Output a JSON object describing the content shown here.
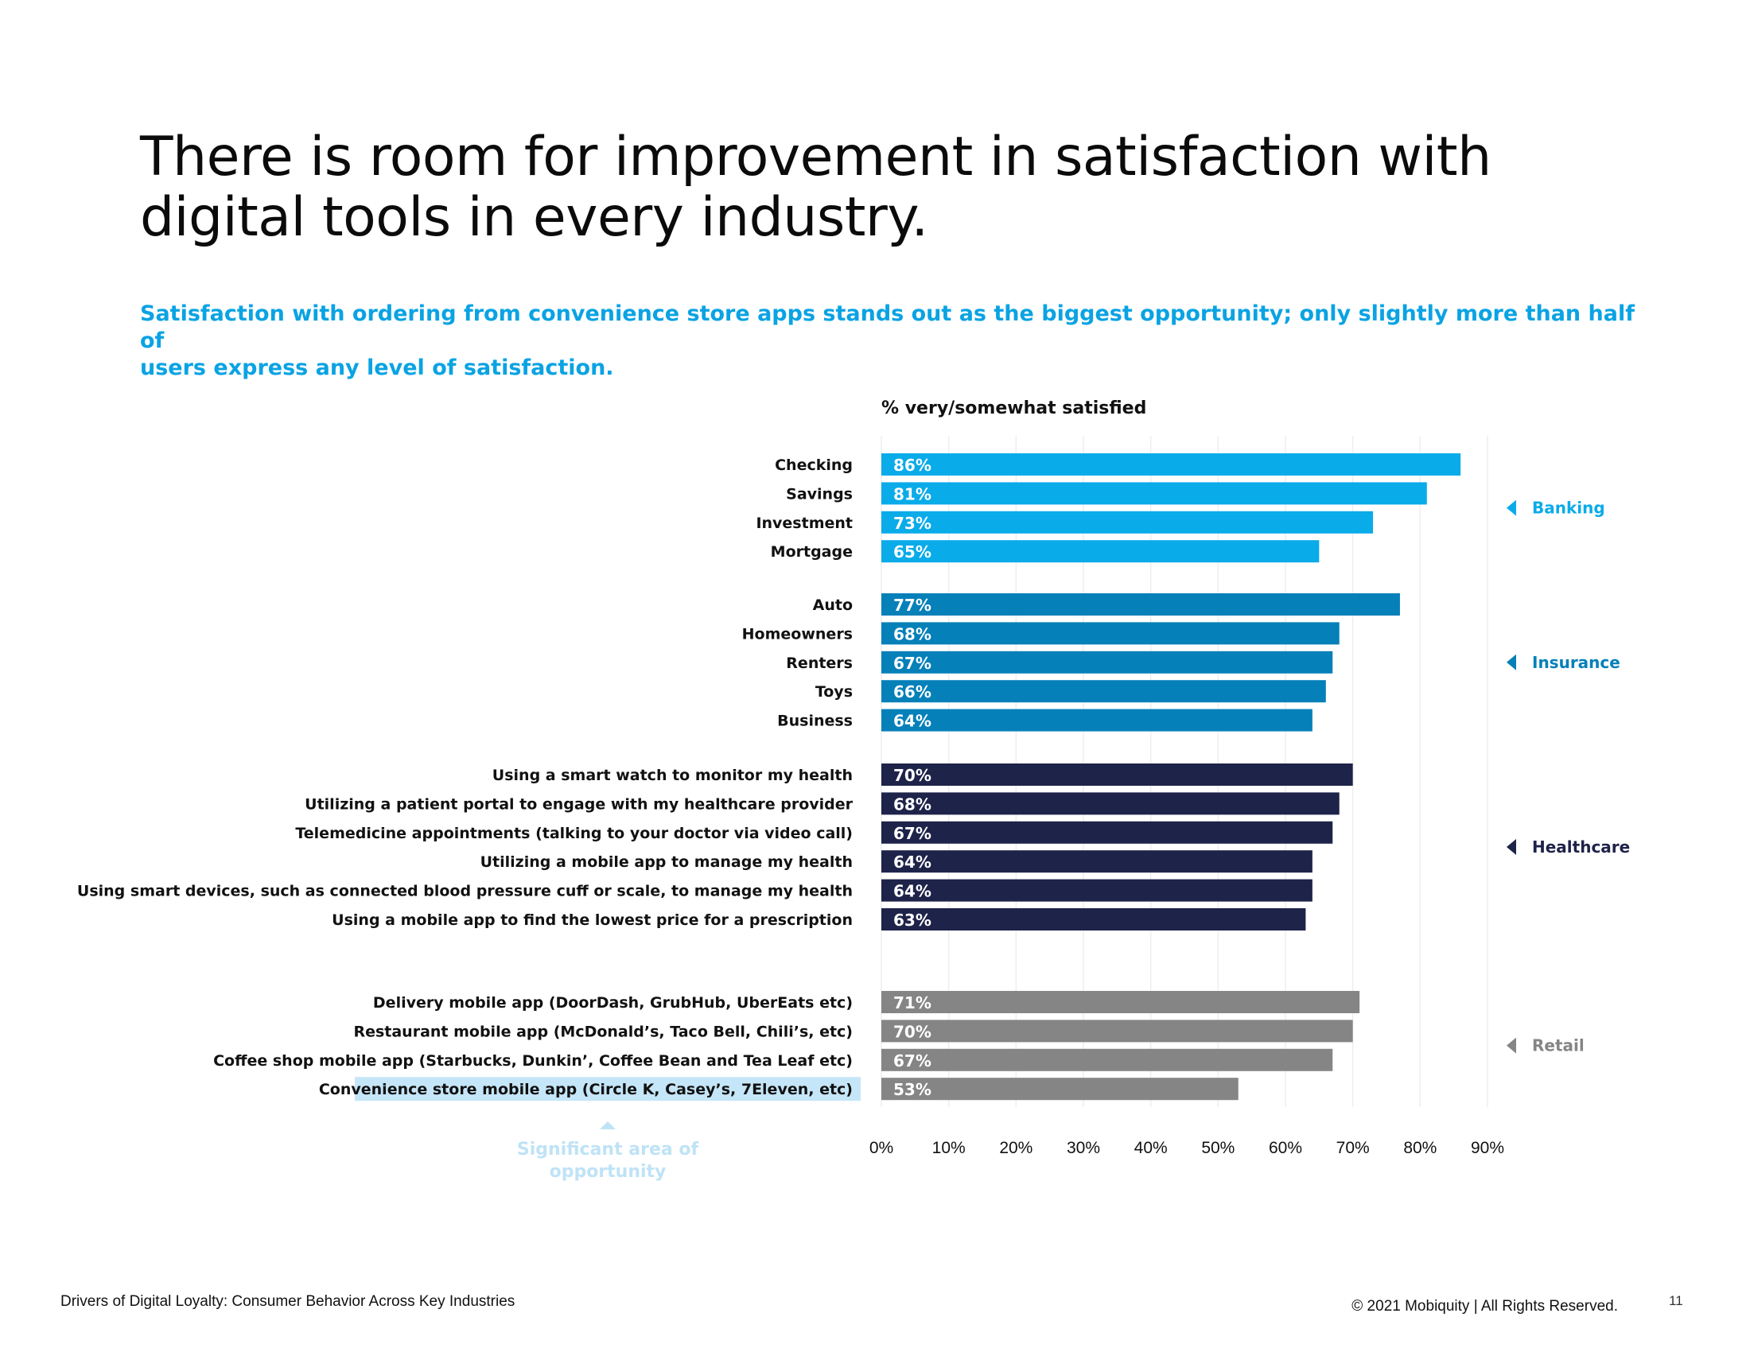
{
  "headline": {
    "line1": "There is room for improvement in satisfaction with",
    "line2": "digital tools in every industry."
  },
  "subhead": {
    "line1": "Satisfaction with ordering from convenience store apps stands out as the biggest opportunity; only slightly more than half of",
    "line2": "users express any level of satisfaction."
  },
  "chart_data": {
    "type": "bar",
    "orientation": "horizontal",
    "title": "% very/somewhat satisfied",
    "xlim": [
      0,
      90
    ],
    "x_ticks": [
      "0%",
      "10%",
      "20%",
      "30%",
      "40%",
      "50%",
      "60%",
      "70%",
      "80%",
      "90%"
    ],
    "grid": true,
    "groups": [
      {
        "name": "Banking",
        "color": "#0aabe9",
        "categories": [
          "Checking",
          "Savings",
          "Investment",
          "Mortgage"
        ],
        "values": [
          86,
          81,
          73,
          65
        ],
        "labels": [
          "86%",
          "81%",
          "73%",
          "65%"
        ]
      },
      {
        "name": "Insurance",
        "color": "#0580b9",
        "categories": [
          "Auto",
          "Homeowners",
          "Renters",
          "Toys",
          "Business"
        ],
        "values": [
          77,
          68,
          67,
          66,
          64
        ],
        "labels": [
          "77%",
          "68%",
          "67%",
          "66%",
          "64%"
        ]
      },
      {
        "name": "Healthcare",
        "color": "#1e2349",
        "categories": [
          "Using a smart watch to monitor my health",
          "Utilizing a patient portal to engage with my healthcare provider",
          "Telemedicine appointments (talking to your doctor via video call)",
          "Utilizing a mobile app to manage my health",
          "Using smart devices, such as connected blood pressure cuff or scale, to manage my health",
          "Using a mobile app to find the lowest price for a prescription"
        ],
        "values": [
          70,
          68,
          67,
          64,
          64,
          63
        ],
        "labels": [
          "70%",
          "68%",
          "67%",
          "64%",
          "64%",
          "63%"
        ]
      },
      {
        "name": "Retail",
        "color": "#858585",
        "categories": [
          "Delivery mobile app (DoorDash, GrubHub, UberEats etc)",
          "Restaurant mobile app (McDonald’s, Taco Bell, Chili’s, etc)",
          "Coffee shop mobile app (Starbucks, Dunkin’, Coffee Bean and Tea Leaf etc)",
          "Convenience store mobile app (Circle K, Casey’s, 7Eleven, etc)"
        ],
        "values": [
          71,
          70,
          67,
          53
        ],
        "labels": [
          "71%",
          "70%",
          "67%",
          "53%"
        ]
      }
    ],
    "highlight": {
      "category": "Convenience store mobile app (Circle K, Casey’s, 7Eleven, etc)",
      "color": "#c5e6f8"
    },
    "annotation": {
      "line1": "Significant area of",
      "line2": "opportunity",
      "color": "#bfe3f6"
    }
  },
  "footer": {
    "left": "Drivers of Digital Loyalty: Consumer Behavior Across Key Industries",
    "right": "© 2021 Mobiquity  |  All Rights Reserved.",
    "page": "11"
  }
}
